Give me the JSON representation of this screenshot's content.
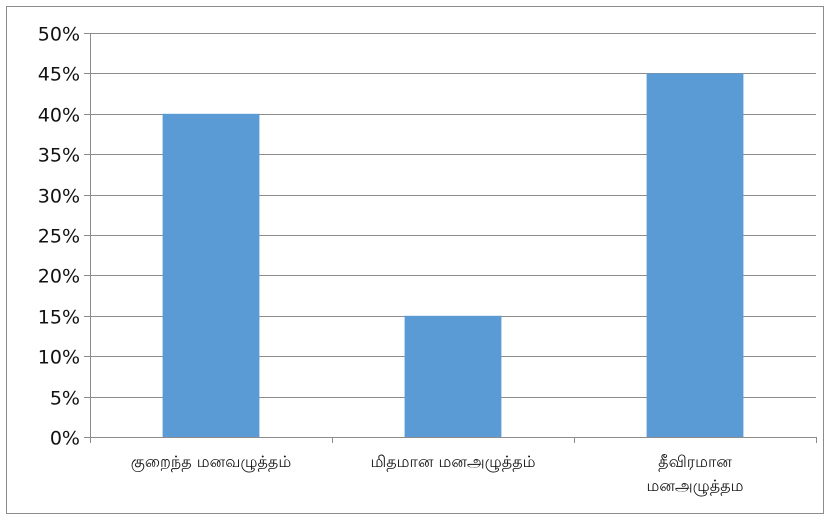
{
  "chart_data": {
    "type": "bar",
    "categories": [
      [
        "குறைந்த மனவழுத்தம்"
      ],
      [
        "மிதமான மனஅழுத்தம்"
      ],
      [
        "தீவிரமான",
        "மனஅழுத்தம"
      ]
    ],
    "values": [
      40,
      15,
      45
    ],
    "ylim": [
      0,
      50
    ],
    "yticks": [
      0,
      5,
      10,
      15,
      20,
      25,
      30,
      35,
      40,
      45,
      50
    ],
    "ytick_suffix": "%",
    "grid": true,
    "legend": "none",
    "title": "",
    "xlabel": "",
    "ylabel": "",
    "colors": {
      "bar": "#5b9bd5",
      "grid": "#8c8c8c",
      "axis": "#8c8c8c"
    }
  }
}
